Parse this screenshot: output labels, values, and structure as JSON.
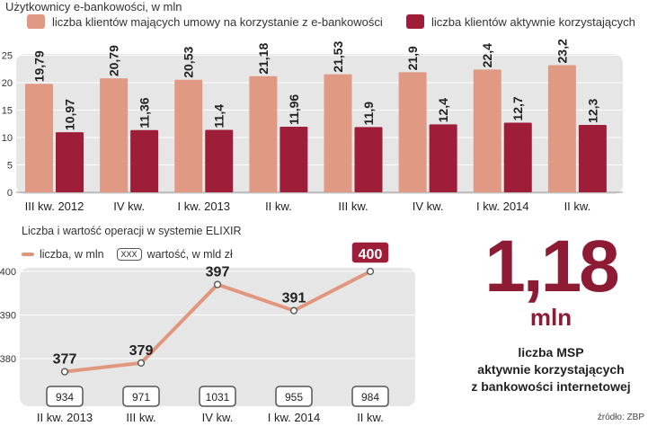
{
  "bar_chart": {
    "title": "Użytkownicy e-bankowości, w mln",
    "legend": [
      {
        "label": "liczba klientów mających umowy na korzystanie z e-bankowości",
        "color": "#e09a84"
      },
      {
        "label": "liczba  klientów aktywnie korzystających",
        "color": "#9e1e3a"
      }
    ]
  },
  "line_chart": {
    "title": "Liczba i wartość operacji w systemie ELIXIR",
    "legend": {
      "line_label": "liczba, w mln",
      "box_sample": "XXX",
      "box_label": "wartość, w mld zł"
    }
  },
  "highlight": {
    "number": "1,18",
    "unit": "mln",
    "caption": [
      "liczba MSP",
      "aktywnie korzystających",
      "z bankowości internetowej"
    ]
  },
  "source": "źródło: ZBP",
  "chart_data": [
    {
      "type": "bar",
      "title": "Użytkownicy e-bankowości, w mln",
      "categories": [
        "III kw. 2012",
        "IV kw.",
        "I kw. 2013",
        "II kw.",
        "III kw.",
        "IV kw.",
        "I kw. 2014",
        "II kw."
      ],
      "category_labels": [
        "III kw. 2012",
        "IV kw.",
        "I kw. 2013",
        "II kw.",
        "III kw.",
        "IV kw.",
        "I kw. 2014",
        "II kw."
      ],
      "value_labels": [
        [
          "19,79",
          "20,79",
          "20,53",
          "21,18",
          "21,53",
          "21,9",
          "22,4",
          "23,2"
        ],
        [
          "10,97",
          "11,36",
          "11,4",
          "11,96",
          "11,9",
          "12,4",
          "12,7",
          "12,3"
        ]
      ],
      "series": [
        {
          "name": "liczba klientów mających umowy na korzystanie z e-bankowości",
          "color": "#e09a84",
          "values": [
            19.79,
            20.79,
            20.53,
            21.18,
            21.53,
            21.9,
            22.4,
            23.2
          ]
        },
        {
          "name": "liczba  klientów aktywnie korzystających",
          "color": "#9e1e3a",
          "values": [
            10.97,
            11.36,
            11.4,
            11.96,
            11.9,
            12.4,
            12.7,
            12.3
          ]
        }
      ],
      "yticks": [
        "0",
        "5",
        "10",
        "15",
        "20",
        "25"
      ],
      "ylim": [
        0,
        25
      ],
      "grid": true
    },
    {
      "type": "line",
      "title": "Liczba i wartość operacji w systemie ELIXIR",
      "categories": [
        "II kw. 2013",
        "III kw.",
        "IV kw.",
        "I kw. 2014",
        "II kw."
      ],
      "series": [
        {
          "name": "liczba, w mln",
          "color": "#e0977e",
          "values": [
            377,
            379,
            397,
            391,
            400
          ],
          "labels": [
            "377",
            "379",
            "397",
            "391",
            "400"
          ],
          "highlight_last": true
        }
      ],
      "boxed_values": {
        "name": "wartość, w mld zł",
        "values": [
          934,
          971,
          1031,
          955,
          984
        ],
        "labels": [
          "934",
          "971",
          "1031",
          "955",
          "984"
        ]
      },
      "yticks": [
        "380",
        "390",
        "400"
      ],
      "ylim": [
        370,
        404
      ],
      "grid": true
    }
  ]
}
